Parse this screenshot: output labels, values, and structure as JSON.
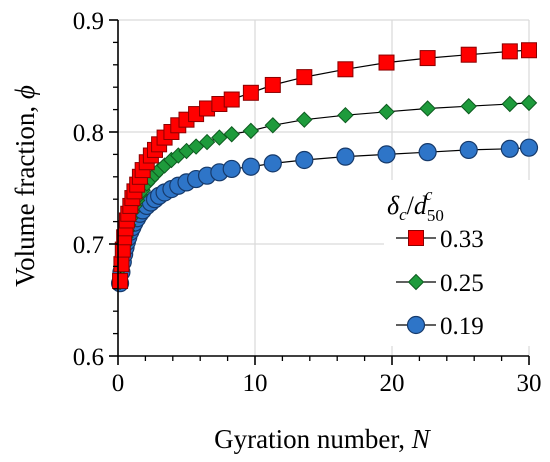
{
  "chart_data": {
    "type": "scatter",
    "xlabel": "Gyration number, N",
    "xlabel_parts": {
      "main": "Gyration number, ",
      "variable": "N"
    },
    "ylabel": "Volume fraction, ϕ",
    "ylabel_parts": {
      "main": "Volume fraction, ",
      "variable": "ϕ"
    },
    "xlim": [
      0,
      30
    ],
    "ylim": [
      0.6,
      0.9
    ],
    "x_ticks": [
      0,
      10,
      20,
      30
    ],
    "y_ticks": [
      0.6,
      0.7,
      0.8,
      0.9
    ],
    "x_tick_labels": [
      "0",
      "10",
      "20",
      "30"
    ],
    "y_tick_labels": [
      "0.6",
      "0.7",
      "0.8",
      "0.9"
    ],
    "grid": true,
    "legend": {
      "placement": "bottom-right",
      "title": "δc/d50c",
      "title_parts": {
        "delta": "δ",
        "c": "c",
        "slash": "/",
        "d": "d",
        "sub": "50",
        "sup": "c"
      }
    },
    "x": [
      0.15,
      0.25,
      0.35,
      0.45,
      0.55,
      0.65,
      0.75,
      0.9,
      1.05,
      1.2,
      1.4,
      1.6,
      1.8,
      2.1,
      2.4,
      2.7,
      3.0,
      3.4,
      3.9,
      4.4,
      5.0,
      5.7,
      6.5,
      7.4,
      8.3,
      9.7,
      11.3,
      13.6,
      16.6,
      19.6,
      22.6,
      25.6,
      28.6,
      30.0
    ],
    "series": [
      {
        "name": "0.33",
        "marker": "square",
        "color": "#ff0000",
        "values": [
          0.667,
          0.682,
          0.695,
          0.706,
          0.714,
          0.721,
          0.727,
          0.734,
          0.741,
          0.747,
          0.753,
          0.76,
          0.766,
          0.773,
          0.779,
          0.784,
          0.789,
          0.795,
          0.8,
          0.806,
          0.811,
          0.816,
          0.821,
          0.825,
          0.829,
          0.835,
          0.842,
          0.849,
          0.856,
          0.862,
          0.866,
          0.869,
          0.872,
          0.873
        ]
      },
      {
        "name": "0.25",
        "marker": "diamond",
        "color": "#1e9b3c",
        "values": [
          0.666,
          0.679,
          0.69,
          0.699,
          0.706,
          0.712,
          0.717,
          0.723,
          0.729,
          0.734,
          0.739,
          0.744,
          0.748,
          0.754,
          0.758,
          0.762,
          0.766,
          0.77,
          0.775,
          0.779,
          0.783,
          0.787,
          0.791,
          0.795,
          0.798,
          0.801,
          0.806,
          0.811,
          0.815,
          0.818,
          0.821,
          0.823,
          0.825,
          0.826
        ]
      },
      {
        "name": "0.19",
        "marker": "circle",
        "color": "#2e75c8",
        "values": [
          0.665,
          0.675,
          0.684,
          0.691,
          0.697,
          0.702,
          0.706,
          0.711,
          0.715,
          0.719,
          0.723,
          0.727,
          0.73,
          0.734,
          0.737,
          0.74,
          0.743,
          0.746,
          0.749,
          0.752,
          0.755,
          0.758,
          0.761,
          0.764,
          0.767,
          0.769,
          0.772,
          0.775,
          0.778,
          0.78,
          0.782,
          0.784,
          0.785,
          0.786
        ]
      }
    ]
  }
}
